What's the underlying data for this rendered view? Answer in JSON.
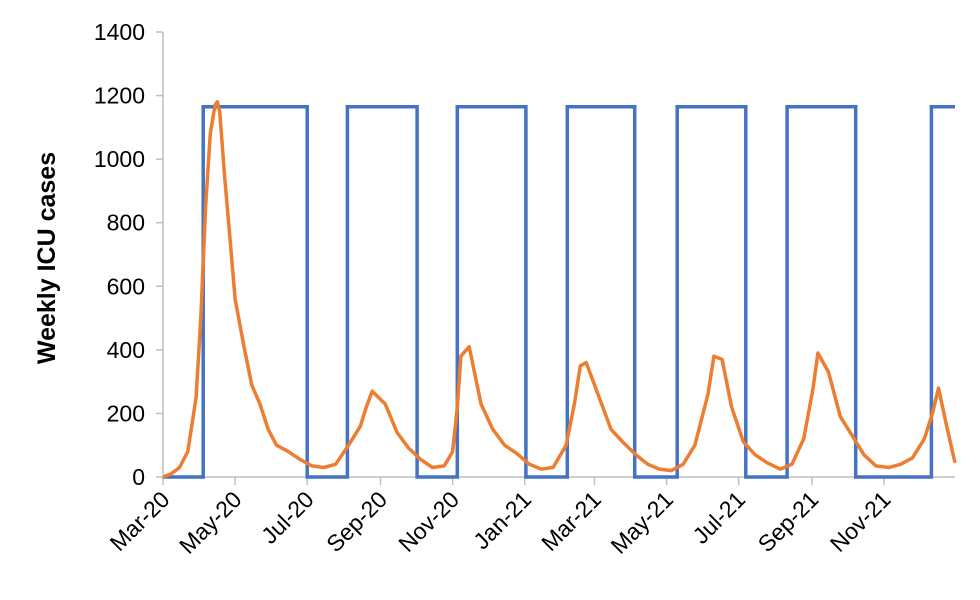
{
  "chart_data": {
    "type": "line",
    "title": "",
    "xlabel": "",
    "ylabel": "Weekly ICU cases",
    "ylim": [
      0,
      1400
    ],
    "yticks": [
      0,
      200,
      400,
      600,
      800,
      1000,
      1200,
      1400
    ],
    "xlim": [
      "2020-03-01",
      "2021-12-31"
    ],
    "xticks": [
      "2020-03-01",
      "2020-05-01",
      "2020-07-01",
      "2020-09-01",
      "2020-11-01",
      "2021-01-01",
      "2021-03-01",
      "2021-05-01",
      "2021-07-01",
      "2021-09-01",
      "2021-11-01"
    ],
    "xtick_labels": [
      "Mar-20",
      "May-20",
      "Jul-20",
      "Sep-20",
      "Nov-20",
      "Jan-21",
      "Mar-21",
      "May-21",
      "Jul-21",
      "Sep-21",
      "Nov-21"
    ],
    "grid": false,
    "legend": "none",
    "colors": {
      "blue": "#4472C4",
      "orange": "#ED7D31"
    },
    "series": [
      {
        "color": "#4472C4",
        "style": "step",
        "x": [
          "2020-03-01",
          "2020-04-04",
          "2020-04-04",
          "2020-07-01",
          "2020-07-01",
          "2020-08-04",
          "2020-08-04",
          "2020-10-02",
          "2020-10-02",
          "2020-11-05",
          "2020-11-05",
          "2021-01-02",
          "2021-01-02",
          "2021-02-06",
          "2021-02-06",
          "2021-04-04",
          "2021-04-04",
          "2021-05-10",
          "2021-05-10",
          "2021-07-07",
          "2021-07-07",
          "2021-08-11",
          "2021-08-11",
          "2021-10-08",
          "2021-10-08",
          "2021-12-11",
          "2021-12-11",
          "2021-12-31"
        ],
        "y": [
          0,
          0,
          1165,
          1165,
          0,
          0,
          1165,
          1165,
          0,
          0,
          1165,
          1165,
          0,
          0,
          1165,
          1165,
          0,
          0,
          1165,
          1165,
          0,
          0,
          1165,
          1165,
          0,
          0,
          1165,
          1165
        ]
      },
      {
        "color": "#ED7D31",
        "style": "line",
        "x": [
          "2020-03-01",
          "2020-03-08",
          "2020-03-15",
          "2020-03-22",
          "2020-03-29",
          "2020-04-02",
          "2020-04-06",
          "2020-04-10",
          "2020-04-14",
          "2020-04-16",
          "2020-04-18",
          "2020-04-22",
          "2020-04-26",
          "2020-05-01",
          "2020-05-08",
          "2020-05-15",
          "2020-05-22",
          "2020-05-29",
          "2020-06-05",
          "2020-06-15",
          "2020-06-25",
          "2020-07-05",
          "2020-07-15",
          "2020-07-25",
          "2020-08-05",
          "2020-08-15",
          "2020-08-20",
          "2020-08-25",
          "2020-09-05",
          "2020-09-15",
          "2020-09-25",
          "2020-10-05",
          "2020-10-15",
          "2020-10-25",
          "2020-11-01",
          "2020-11-05",
          "2020-11-08",
          "2020-11-15",
          "2020-11-25",
          "2020-12-05",
          "2020-12-15",
          "2020-12-25",
          "2021-01-05",
          "2021-01-15",
          "2021-01-25",
          "2021-02-05",
          "2021-02-12",
          "2021-02-17",
          "2021-02-22",
          "2021-03-05",
          "2021-03-15",
          "2021-03-25",
          "2021-04-05",
          "2021-04-15",
          "2021-04-25",
          "2021-05-05",
          "2021-05-15",
          "2021-05-25",
          "2021-06-05",
          "2021-06-10",
          "2021-06-17",
          "2021-06-25",
          "2021-07-05",
          "2021-07-15",
          "2021-07-25",
          "2021-08-05",
          "2021-08-15",
          "2021-08-25",
          "2021-09-02",
          "2021-09-06",
          "2021-09-15",
          "2021-09-25",
          "2021-10-05",
          "2021-10-15",
          "2021-10-25",
          "2021-11-05",
          "2021-11-15",
          "2021-11-25",
          "2021-12-05",
          "2021-12-12",
          "2021-12-17",
          "2021-12-24",
          "2021-12-31"
        ],
        "y": [
          0,
          10,
          30,
          80,
          250,
          500,
          850,
          1080,
          1170,
          1180,
          1150,
          950,
          780,
          560,
          420,
          290,
          230,
          150,
          100,
          80,
          55,
          35,
          30,
          40,
          100,
          160,
          220,
          270,
          230,
          140,
          90,
          55,
          30,
          35,
          80,
          220,
          380,
          410,
          230,
          150,
          100,
          75,
          40,
          25,
          30,
          100,
          230,
          350,
          360,
          250,
          150,
          110,
          70,
          40,
          25,
          20,
          40,
          100,
          260,
          380,
          370,
          220,
          110,
          70,
          45,
          25,
          40,
          120,
          280,
          390,
          330,
          190,
          130,
          70,
          35,
          30,
          40,
          60,
          120,
          200,
          280,
          160,
          45
        ]
      }
    ]
  }
}
